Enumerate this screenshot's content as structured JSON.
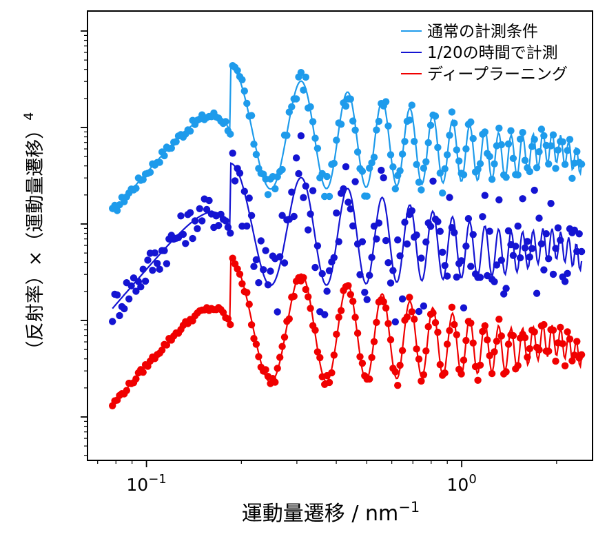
{
  "chart_data": {
    "type": "scatter",
    "xlabel": "運動量遷移 / nm",
    "xlabel_sup": "−1",
    "ylabel": "（反射率）×（運動量遷移）",
    "ylabel_sup": "4",
    "xscale": "log",
    "yscale": "log",
    "xlim": [
      0.065,
      2.6
    ],
    "ylim_decades": 4.5,
    "x_ticklabels": [
      {
        "value": 0.1,
        "base": "10",
        "exp": "−1"
      },
      {
        "value": 1.0,
        "base": "10",
        "exp": "0"
      }
    ],
    "grid": false,
    "legend_position": "top-right",
    "series": [
      {
        "name": "通常の計測条件",
        "color": "#1E9BEB",
        "offset": 2.0,
        "noise": 0.08
      },
      {
        "name": "1/20の時間で計測",
        "color": "#1414D2",
        "offset": 1.0,
        "noise": 0.3
      },
      {
        "name": "ディープラーニング",
        "color": "#F00000",
        "offset": 0.0,
        "noise": 0.05
      }
    ]
  }
}
